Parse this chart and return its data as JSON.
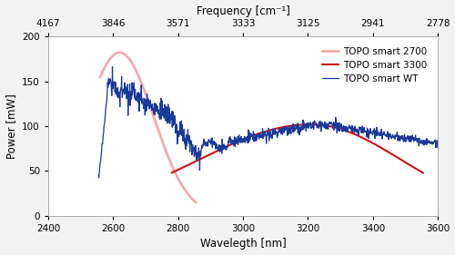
{
  "xlabel": "Wavelegth [nm]",
  "ylabel": "Power [mW]",
  "freq_label": "Frequency [cm⁻¹]",
  "xlim": [
    2400,
    3600
  ],
  "ylim": [
    0,
    200
  ],
  "xticks": [
    2400,
    2600,
    2800,
    3000,
    3200,
    3400,
    3600
  ],
  "yticks": [
    0,
    50,
    100,
    150,
    200
  ],
  "freq_ticks_nm": [
    2400,
    2600,
    2800,
    3000,
    3200,
    3400,
    3600
  ],
  "freq_tick_labels": [
    "4167",
    "3846",
    "3571",
    "3333",
    "3125",
    "2941",
    "2778"
  ],
  "color_2700": "#F5AAAA",
  "color_3300": "#CC1111",
  "color_wt": "#1A3A9A",
  "legend_labels": [
    "TOPO smart 2700",
    "TOPO smart 3300",
    "TOPO smart WT"
  ],
  "bg_color": "#F2F2F2",
  "plot_bg": "#FFFFFF"
}
